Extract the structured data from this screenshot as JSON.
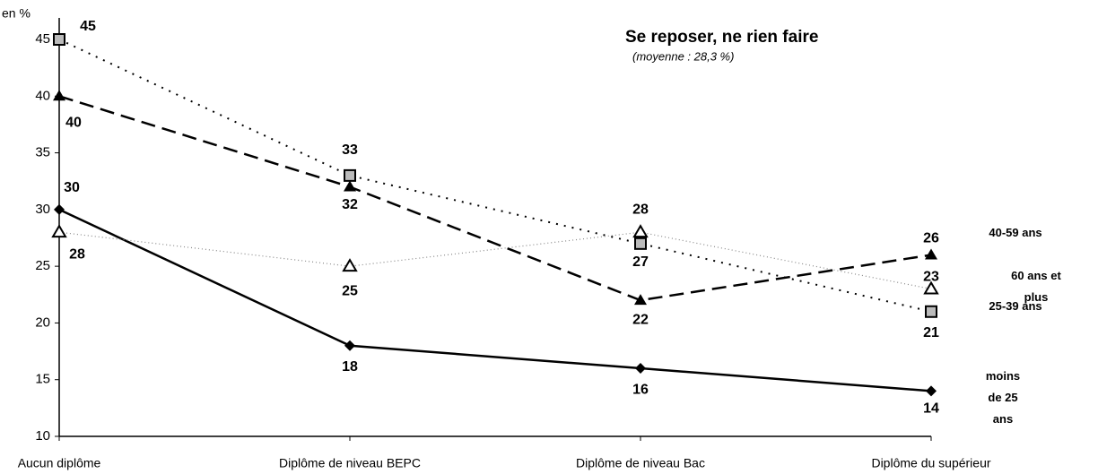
{
  "chart_data": {
    "type": "line",
    "title": "Se reposer, ne rien faire",
    "subtitle": "(moyenne : 28,3 %)",
    "y_label": "en %",
    "categories": [
      "Aucun diplôme",
      "Diplôme de niveau BEPC",
      "Diplôme de niveau Bac",
      "Diplôme du supérieur"
    ],
    "series": [
      {
        "name": "moins de 25 ans",
        "color": "#000000",
        "values": [
          30,
          18,
          16,
          14
        ]
      },
      {
        "name": "25-39 ans",
        "color": "#000000",
        "values": [
          45,
          33,
          27,
          21
        ]
      },
      {
        "name": "40-59 ans",
        "color": "#000000",
        "values": [
          40,
          32,
          22,
          26
        ]
      },
      {
        "name": "60 ans et plus",
        "color": "#888888",
        "values": [
          28,
          25,
          28,
          23
        ]
      }
    ],
    "ylim": [
      10,
      45
    ],
    "yticks": [
      10,
      15,
      20,
      25,
      30,
      35,
      40,
      45
    ],
    "grid": false
  }
}
